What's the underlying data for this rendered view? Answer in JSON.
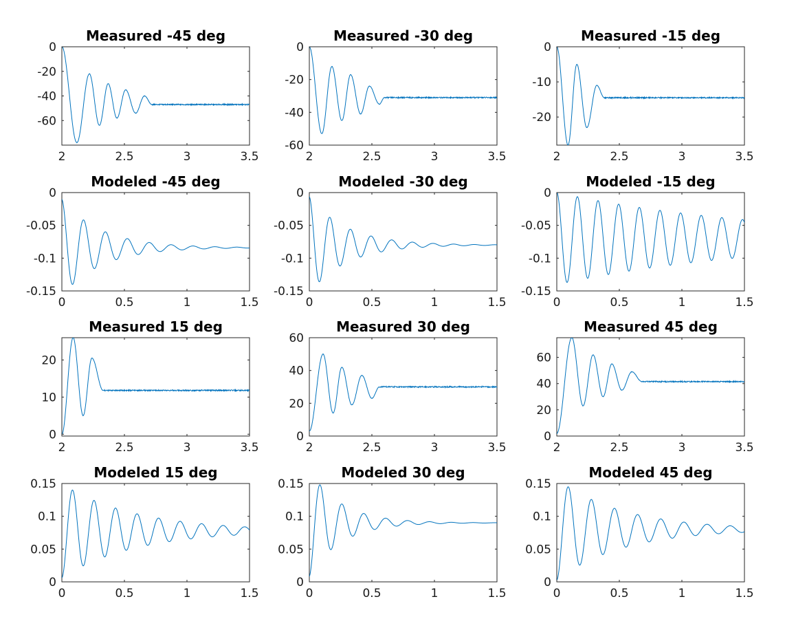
{
  "chart_data": [
    {
      "type": "line",
      "title": "Measured -45 deg",
      "xlim": [
        2,
        3.5
      ],
      "ylim": [
        -80,
        0
      ],
      "xticks": [
        2,
        2.5,
        3,
        3.5
      ],
      "xtick_labels": [
        "2",
        "2.5",
        "3",
        "3.5"
      ],
      "yticks": [
        0,
        -20,
        -40,
        -60
      ],
      "ytick_labels": [
        "0",
        "-20",
        "-40",
        "-60"
      ],
      "grid": false,
      "series": [
        {
          "kind": "measured",
          "t0": 2.0,
          "y0": 0,
          "final": -47,
          "amplitude": -31,
          "period": 0.155,
          "decay": 0.5,
          "end": 2.72,
          "extrema": [
            [
              2.0,
              0
            ],
            [
              2.12,
              -78
            ],
            [
              2.22,
              -22
            ],
            [
              2.3,
              -64
            ],
            [
              2.37,
              -30
            ],
            [
              2.44,
              -58
            ],
            [
              2.51,
              -35
            ],
            [
              2.59,
              -54
            ],
            [
              2.66,
              -40
            ],
            [
              2.72,
              -47
            ]
          ]
        }
      ]
    },
    {
      "type": "line",
      "title": "Measured -30 deg",
      "xlim": [
        2,
        3.5
      ],
      "ylim": [
        -60,
        0
      ],
      "xticks": [
        2,
        2.5,
        3,
        3.5
      ],
      "xtick_labels": [
        "2",
        "2.5",
        "3",
        "3.5"
      ],
      "yticks": [
        0,
        -20,
        -40,
        -60
      ],
      "ytick_labels": [
        "0",
        "-20",
        "-40",
        "-60"
      ],
      "grid": false,
      "series": [
        {
          "kind": "measured",
          "t0": 2.0,
          "y0": 0,
          "final": -31,
          "amplitude": -22,
          "period": 0.155,
          "decay": 0.5,
          "end": 2.6,
          "extrema": [
            [
              2.0,
              0
            ],
            [
              2.1,
              -53
            ],
            [
              2.18,
              -12
            ],
            [
              2.26,
              -45
            ],
            [
              2.33,
              -17
            ],
            [
              2.41,
              -41
            ],
            [
              2.48,
              -24
            ],
            [
              2.56,
              -35
            ],
            [
              2.6,
              -31
            ]
          ]
        }
      ]
    },
    {
      "type": "line",
      "title": "Measured -15 deg",
      "xlim": [
        2,
        3.5
      ],
      "ylim": [
        -28,
        0
      ],
      "xticks": [
        2,
        2.5,
        3,
        3.5
      ],
      "xtick_labels": [
        "2",
        "2.5",
        "3",
        "3.5"
      ],
      "yticks": [
        -10,
        -20
      ],
      "ytick_labels": [
        "-10",
        "-20"
      ],
      "extra_yticks": [
        0
      ],
      "extra_ytick_labels": [
        "0"
      ],
      "grid": false,
      "series": [
        {
          "kind": "measured",
          "t0": 2.0,
          "y0": 0,
          "final": -14.5,
          "amplitude": -13,
          "period": 0.155,
          "decay": 0.5,
          "end": 2.38,
          "extrema": [
            [
              2.0,
              0
            ],
            [
              2.09,
              -28
            ],
            [
              2.16,
              -5
            ],
            [
              2.24,
              -23
            ],
            [
              2.32,
              -11
            ],
            [
              2.38,
              -14.5
            ]
          ]
        }
      ]
    },
    {
      "type": "line",
      "title": "Modeled -45 deg",
      "xlim": [
        0,
        1.5
      ],
      "ylim": [
        -0.15,
        0
      ],
      "xticks": [
        0,
        0.5,
        1,
        1.5
      ],
      "xtick_labels": [
        "0",
        "0.5",
        "1",
        "1.5"
      ],
      "yticks": [
        0,
        -0.05,
        -0.1,
        -0.15
      ],
      "ytick_labels": [
        "0",
        "-0.05",
        "-0.1",
        "-0.15"
      ],
      "grid": false,
      "series": [
        {
          "kind": "modeled",
          "y0": 0,
          "final": -0.084,
          "amplitude": -0.084,
          "period": 0.175,
          "decay": 3.2,
          "extrema": [
            [
              0.08,
              -0.14
            ],
            [
              0.18,
              -0.045
            ],
            [
              0.27,
              -0.11
            ],
            [
              0.36,
              -0.065
            ]
          ]
        }
      ]
    },
    {
      "type": "line",
      "title": "Modeled -30 deg",
      "xlim": [
        0,
        1.5
      ],
      "ylim": [
        -0.15,
        0
      ],
      "xticks": [
        0,
        0.5,
        1,
        1.5
      ],
      "xtick_labels": [
        "0",
        "0.5",
        "1",
        "1.5"
      ],
      "yticks": [
        0,
        -0.05,
        -0.1,
        -0.15
      ],
      "ytick_labels": [
        "0",
        "-0.05",
        "-0.1",
        "-0.15"
      ],
      "grid": false,
      "series": [
        {
          "kind": "modeled",
          "y0": 0,
          "final": -0.08,
          "amplitude": -0.08,
          "period": 0.165,
          "decay": 3.4,
          "extrema": [
            [
              0.08,
              -0.136
            ],
            [
              0.17,
              -0.04
            ],
            [
              0.25,
              -0.11
            ],
            [
              0.33,
              -0.06
            ]
          ]
        }
      ]
    },
    {
      "type": "line",
      "title": "Modeled -15 deg",
      "xlim": [
        0,
        1.5
      ],
      "ylim": [
        -0.15,
        0
      ],
      "xticks": [
        0,
        0.5,
        1,
        1.5
      ],
      "xtick_labels": [
        "0",
        "0.5",
        "1",
        "1.5"
      ],
      "yticks": [
        0,
        -0.05,
        -0.1,
        -0.15
      ],
      "ytick_labels": [
        "0",
        "-0.05",
        "-0.1",
        "-0.15"
      ],
      "grid": false,
      "series": [
        {
          "kind": "modeled",
          "y0": 0,
          "final": -0.07,
          "amplitude": -0.07,
          "period": 0.165,
          "decay": 0.6,
          "extrema": [
            [
              0.08,
              -0.137
            ],
            [
              0.17,
              -0.005
            ],
            [
              0.25,
              -0.128
            ],
            [
              0.33,
              -0.015
            ]
          ]
        }
      ]
    },
    {
      "type": "line",
      "title": "Measured 15 deg",
      "xlim": [
        2,
        3.5
      ],
      "ylim": [
        -0.5,
        26
      ],
      "xticks": [
        2,
        2.5,
        3,
        3.5
      ],
      "xtick_labels": [
        "2",
        "2.5",
        "3",
        "3.5"
      ],
      "yticks": [
        0,
        10,
        20
      ],
      "ytick_labels": [
        "0",
        "10",
        "20"
      ],
      "grid": false,
      "series": [
        {
          "kind": "measured",
          "t0": 2.0,
          "y0": 0,
          "final": 11.8,
          "amplitude": 13,
          "period": 0.155,
          "decay": 0.5,
          "end": 2.33,
          "extrema": [
            [
              2.0,
              0
            ],
            [
              2.09,
              26
            ],
            [
              2.17,
              5
            ],
            [
              2.24,
              20.5
            ],
            [
              2.33,
              11.8
            ]
          ]
        }
      ]
    },
    {
      "type": "line",
      "title": "Measured 30 deg",
      "xlim": [
        2,
        3.5
      ],
      "ylim": [
        0,
        60
      ],
      "xticks": [
        2,
        2.5,
        3,
        3.5
      ],
      "xtick_labels": [
        "2",
        "2.5",
        "3",
        "3.5"
      ],
      "yticks": [
        0,
        20,
        40,
        60
      ],
      "ytick_labels": [
        "0",
        "20",
        "40",
        "60"
      ],
      "grid": false,
      "series": [
        {
          "kind": "measured",
          "t0": 2.0,
          "y0": 3,
          "final": 30,
          "amplitude": 20,
          "period": 0.155,
          "decay": 0.5,
          "end": 2.56,
          "extrema": [
            [
              2.0,
              3
            ],
            [
              2.11,
              50
            ],
            [
              2.19,
              14
            ],
            [
              2.26,
              42
            ],
            [
              2.34,
              19
            ],
            [
              2.42,
              37
            ],
            [
              2.5,
              23
            ],
            [
              2.56,
              30
            ]
          ]
        }
      ]
    },
    {
      "type": "line",
      "title": "Measured 45 deg",
      "xlim": [
        2,
        3.5
      ],
      "ylim": [
        0,
        75
      ],
      "xticks": [
        2,
        2.5,
        3,
        3.5
      ],
      "xtick_labels": [
        "2",
        "2.5",
        "3",
        "3.5"
      ],
      "yticks": [
        0,
        20,
        40,
        60
      ],
      "ytick_labels": [
        "0",
        "20",
        "40",
        "60"
      ],
      "grid": false,
      "series": [
        {
          "kind": "measured",
          "t0": 2.0,
          "y0": 2,
          "final": 41.5,
          "amplitude": 35,
          "period": 0.16,
          "decay": 0.5,
          "end": 2.68,
          "extrema": [
            [
              2.0,
              2
            ],
            [
              2.12,
              75
            ],
            [
              2.21,
              23
            ],
            [
              2.29,
              62
            ],
            [
              2.37,
              30
            ],
            [
              2.44,
              55
            ],
            [
              2.52,
              35
            ],
            [
              2.6,
              49
            ],
            [
              2.68,
              41.5
            ]
          ]
        }
      ]
    },
    {
      "type": "line",
      "title": "Modeled 15 deg",
      "xlim": [
        0,
        1.5
      ],
      "ylim": [
        0,
        0.15
      ],
      "xticks": [
        0,
        0.5,
        1,
        1.5
      ],
      "xtick_labels": [
        "0",
        "0.5",
        "1",
        "1.5"
      ],
      "yticks": [
        0,
        0.05,
        0.1,
        0.15
      ],
      "ytick_labels": [
        "0",
        "0.05",
        "0.1",
        "0.15"
      ],
      "grid": false,
      "series": [
        {
          "kind": "modeled",
          "y0": 0,
          "final": 0.078,
          "amplitude": 0.078,
          "period": 0.172,
          "decay": 1.7,
          "extrema": [
            [
              0.08,
              0.14
            ],
            [
              0.17,
              0.025
            ],
            [
              0.25,
              0.122
            ],
            [
              0.34,
              0.04
            ]
          ]
        }
      ]
    },
    {
      "type": "line",
      "title": "Modeled 30 deg",
      "xlim": [
        0,
        1.5
      ],
      "ylim": [
        0,
        0.15
      ],
      "xticks": [
        0,
        0.5,
        1,
        1.5
      ],
      "xtick_labels": [
        "0",
        "0.5",
        "1",
        "1.5"
      ],
      "yticks": [
        0,
        0.05,
        0.1,
        0.15
      ],
      "ytick_labels": [
        "0",
        "0.05",
        "0.1",
        "0.15"
      ],
      "grid": false,
      "series": [
        {
          "kind": "modeled",
          "y0": 0,
          "final": 0.09,
          "amplitude": 0.09,
          "period": 0.175,
          "decay": 4.0,
          "extrema": [
            [
              0.08,
              0.148
            ],
            [
              0.16,
              0.052
            ],
            [
              0.25,
              0.115
            ],
            [
              0.34,
              0.075
            ]
          ]
        }
      ]
    },
    {
      "type": "line",
      "title": "Modeled 45 deg",
      "xlim": [
        0,
        1.5
      ],
      "ylim": [
        0,
        0.15
      ],
      "xticks": [
        0,
        0.5,
        1,
        1.5
      ],
      "xtick_labels": [
        "0",
        "0.5",
        "1",
        "1.5"
      ],
      "yticks": [
        0,
        0.05,
        0.1,
        0.15
      ],
      "ytick_labels": [
        "0",
        "0.05",
        "0.1",
        "0.15"
      ],
      "grid": false,
      "series": [
        {
          "kind": "modeled",
          "y0": 0,
          "final": 0.08,
          "amplitude": 0.08,
          "period": 0.185,
          "decay": 1.9,
          "extrema": [
            [
              0.09,
              0.145
            ],
            [
              0.18,
              0.028
            ],
            [
              0.27,
              0.124
            ],
            [
              0.36,
              0.047
            ]
          ]
        }
      ]
    }
  ]
}
